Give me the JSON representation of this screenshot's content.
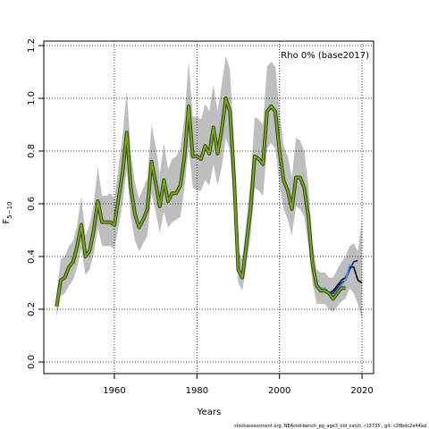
{
  "chart_data": {
    "type": "line",
    "title": "Rho 0% (base2017)",
    "xlabel": "Years",
    "ylabel": "F",
    "ylabel_sub": "5−10",
    "footer": "stockassessment.org, NEAcod-bench_pg_age3_old_catch, r13735 , git: c28bdc2a44ad",
    "xlim": [
      1942.9,
      2022.8
    ],
    "ylim": [
      -0.044,
      1.217
    ],
    "xticks": [
      1960,
      1980,
      2000,
      2020
    ],
    "yticks": [
      {
        "value": 0,
        "label": "0.0"
      },
      0.2,
      0.4,
      0.6,
      0.8,
      {
        "value": 1,
        "label": "1.0"
      },
      1.2
    ],
    "grid": true,
    "band": {
      "color": "#bebebe",
      "x": [
        1946,
        1947,
        1948,
        1949,
        1950,
        1951,
        1952,
        1953,
        1954,
        1955,
        1956,
        1957,
        1958,
        1959,
        1960,
        1961,
        1962,
        1963,
        1964,
        1965,
        1966,
        1967,
        1968,
        1969,
        1970,
        1971,
        1972,
        1973,
        1974,
        1975,
        1976,
        1977,
        1978,
        1979,
        1980,
        1981,
        1982,
        1983,
        1984,
        1985,
        1986,
        1987,
        1988,
        1989,
        1990,
        1991,
        1992,
        1993,
        1994,
        1995,
        1996,
        1997,
        1998,
        1999,
        2000,
        2001,
        2002,
        2003,
        2004,
        2005,
        2006,
        2007,
        2008,
        2009,
        2010,
        2011,
        2012,
        2013,
        2014,
        2015,
        2016,
        2017,
        2018,
        2019,
        2020
      ],
      "upper": [
        0.26,
        0.39,
        0.4,
        0.44,
        0.46,
        0.52,
        0.63,
        0.48,
        0.52,
        0.6,
        0.74,
        0.63,
        0.63,
        0.64,
        0.62,
        0.74,
        0.86,
        1.03,
        0.79,
        0.68,
        0.62,
        0.66,
        0.7,
        0.9,
        0.82,
        0.71,
        0.83,
        0.73,
        0.77,
        0.78,
        0.81,
        0.93,
        1.14,
        0.93,
        0.93,
        0.92,
        0.98,
        0.95,
        1.05,
        0.95,
        1.05,
        1.16,
        1.11,
        0.84,
        0.42,
        0.39,
        0.54,
        0.69,
        0.93,
        0.92,
        0.9,
        1.12,
        1.14,
        1.12,
        0.95,
        0.82,
        0.78,
        0.7,
        0.85,
        0.84,
        0.8,
        0.67,
        0.45,
        0.35,
        0.34,
        0.34,
        0.32,
        0.32,
        0.35,
        0.38,
        0.4,
        0.44,
        0.45,
        0.42,
        0.54
      ],
      "lower": [
        0.17,
        0.25,
        0.26,
        0.29,
        0.31,
        0.36,
        0.43,
        0.33,
        0.35,
        0.41,
        0.51,
        0.44,
        0.44,
        0.44,
        0.43,
        0.51,
        0.6,
        0.73,
        0.55,
        0.46,
        0.42,
        0.45,
        0.48,
        0.64,
        0.57,
        0.49,
        0.57,
        0.51,
        0.53,
        0.54,
        0.55,
        0.66,
        0.82,
        0.66,
        0.65,
        0.65,
        0.69,
        0.67,
        0.75,
        0.67,
        0.74,
        0.85,
        0.8,
        0.58,
        0.3,
        0.27,
        0.37,
        0.48,
        0.66,
        0.65,
        0.63,
        0.81,
        0.83,
        0.81,
        0.67,
        0.58,
        0.54,
        0.48,
        0.59,
        0.58,
        0.55,
        0.44,
        0.3,
        0.22,
        0.22,
        0.22,
        0.2,
        0.19,
        0.21,
        0.23,
        0.24,
        0.28,
        0.26,
        0.22,
        0.16
      ]
    },
    "series": [
      {
        "color": "#000000",
        "x": [
          2008,
          2009,
          2010,
          2011,
          2012,
          2013,
          2014,
          2015,
          2016,
          2017,
          2018,
          2019,
          2020
        ],
        "values": [
          0.37,
          0.29,
          0.28,
          0.28,
          0.26,
          0.27,
          0.29,
          0.31,
          0.32,
          0.36,
          0.36,
          0.31,
          0.3
        ]
      },
      {
        "color": "#1f2a8c",
        "x": [
          2008,
          2009,
          2010,
          2011,
          2012,
          2013,
          2014,
          2015,
          2016,
          2017,
          2018,
          2019
        ],
        "values": [
          0.37,
          0.29,
          0.28,
          0.28,
          0.26,
          0.26,
          0.28,
          0.3,
          0.31,
          0.35,
          0.38,
          0.385
        ]
      },
      {
        "color": "#3fa9e0",
        "x": [
          2008,
          2009,
          2010,
          2011,
          2012,
          2013,
          2014,
          2015,
          2016,
          2017
        ],
        "values": [
          0.37,
          0.29,
          0.28,
          0.28,
          0.26,
          0.25,
          0.27,
          0.29,
          0.31,
          0.37
        ]
      },
      {
        "color": "#7aa51c",
        "outline": "#2f4a14",
        "x": [
          1946,
          1947,
          1948,
          1949,
          1950,
          1951,
          1952,
          1953,
          1954,
          1955,
          1956,
          1957,
          1958,
          1959,
          1960,
          1961,
          1962,
          1963,
          1964,
          1965,
          1966,
          1967,
          1968,
          1969,
          1970,
          1971,
          1972,
          1973,
          1974,
          1975,
          1976,
          1977,
          1978,
          1979,
          1980,
          1981,
          1982,
          1983,
          1984,
          1985,
          1986,
          1987,
          1988,
          1989,
          1990,
          1991,
          1992,
          1993,
          1994,
          1995,
          1996,
          1997,
          1998,
          1999,
          2000,
          2001,
          2002,
          2003,
          2004,
          2005,
          2006,
          2007,
          2008,
          2009,
          2010,
          2011,
          2012,
          2013,
          2014,
          2015,
          2016
        ],
        "values": [
          0.21,
          0.31,
          0.32,
          0.36,
          0.38,
          0.44,
          0.52,
          0.4,
          0.42,
          0.5,
          0.61,
          0.53,
          0.53,
          0.53,
          0.52,
          0.62,
          0.72,
          0.87,
          0.66,
          0.56,
          0.51,
          0.54,
          0.58,
          0.76,
          0.68,
          0.59,
          0.69,
          0.61,
          0.64,
          0.64,
          0.67,
          0.78,
          0.97,
          0.78,
          0.78,
          0.77,
          0.82,
          0.79,
          0.89,
          0.79,
          0.88,
          1.0,
          0.95,
          0.7,
          0.35,
          0.32,
          0.45,
          0.58,
          0.78,
          0.77,
          0.75,
          0.95,
          0.97,
          0.95,
          0.8,
          0.69,
          0.65,
          0.58,
          0.7,
          0.7,
          0.66,
          0.55,
          0.37,
          0.29,
          0.27,
          0.27,
          0.26,
          0.24,
          0.26,
          0.28,
          0.28
        ]
      }
    ]
  }
}
